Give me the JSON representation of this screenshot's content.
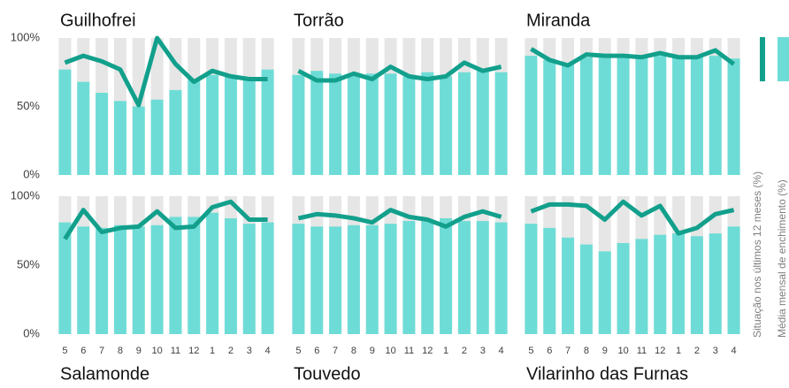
{
  "chart_data": {
    "type": "small-multiples",
    "categories": [
      "5",
      "6",
      "7",
      "8",
      "9",
      "10",
      "11",
      "12",
      "1",
      "2",
      "3",
      "4"
    ],
    "ylim": [
      0,
      100
    ],
    "yticks": [
      {
        "value": 0,
        "label": "0%"
      },
      {
        "value": 50,
        "label": "50%"
      },
      {
        "value": 100,
        "label": "100%"
      }
    ],
    "background_color": "#e6e6e6",
    "series": [
      {
        "name": "Situação nos últimos 12 meses (%)",
        "color": "#12a08c"
      },
      {
        "name": "Média mensal de enchimento (%)",
        "color": "#6edcd6"
      }
    ],
    "panels": [
      {
        "title": "Guilhofrei",
        "line": [
          82,
          87,
          83,
          77,
          51,
          100,
          81,
          68,
          76,
          72,
          70,
          70
        ],
        "bars": [
          77,
          68,
          60,
          54,
          50,
          55,
          62,
          70,
          73,
          72,
          70,
          77
        ]
      },
      {
        "title": "Torrão",
        "line": [
          76,
          69,
          69,
          74,
          70,
          79,
          72,
          70,
          72,
          82,
          76,
          79
        ],
        "bars": [
          73,
          76,
          74,
          73,
          74,
          74,
          72,
          75,
          72,
          75,
          76,
          75
        ]
      },
      {
        "title": "Miranda",
        "line": [
          92,
          84,
          80,
          88,
          87,
          87,
          86,
          89,
          86,
          86,
          91,
          81
        ],
        "bars": [
          87,
          84,
          81,
          86,
          86,
          86,
          86,
          87,
          87,
          86,
          87,
          85
        ]
      },
      {
        "title": "Salamonde",
        "line": [
          69,
          90,
          74,
          77,
          78,
          89,
          77,
          78,
          92,
          96,
          83,
          83
        ],
        "bars": [
          81,
          78,
          77,
          79,
          78,
          79,
          85,
          85,
          88,
          84,
          80,
          81
        ]
      },
      {
        "title": "Touvedo",
        "line": [
          84,
          87,
          86,
          84,
          81,
          90,
          85,
          83,
          78,
          85,
          89,
          85
        ],
        "bars": [
          80,
          78,
          78,
          79,
          79,
          80,
          82,
          82,
          84,
          82,
          82,
          81
        ]
      },
      {
        "title": "Vilarinho das Furnas",
        "line": [
          89,
          94,
          94,
          93,
          83,
          96,
          86,
          93,
          73,
          77,
          87,
          90
        ],
        "bars": [
          80,
          77,
          70,
          65,
          60,
          66,
          69,
          72,
          73,
          71,
          73,
          78
        ]
      }
    ]
  }
}
